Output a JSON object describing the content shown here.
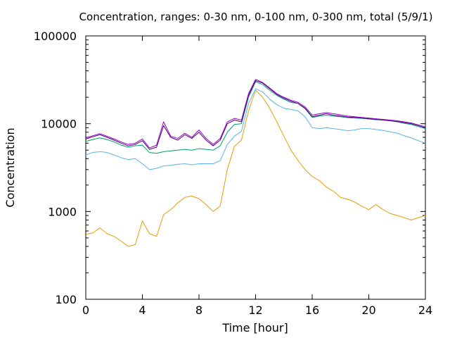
{
  "chart_data": {
    "type": "line",
    "title": "Concentration, ranges: 0-30 nm, 0-100 nm, 0-300 nm, total (5/9/1)",
    "xlabel": "Time [hour]",
    "ylabel": "Concentration",
    "xlim": [
      0,
      24
    ],
    "ylim": [
      100,
      100000
    ],
    "yscale": "log",
    "grid": false,
    "legend": "none",
    "x_ticks": [
      0,
      4,
      8,
      12,
      16,
      20,
      24
    ],
    "x_tick_labels": [
      "0",
      "4",
      "8",
      "12",
      "16",
      "20",
      "24"
    ],
    "y_ticks": [
      100,
      1000,
      10000,
      100000
    ],
    "y_tick_labels": [
      "100",
      "1000",
      "10000",
      "100000"
    ],
    "x": [
      0,
      0.5,
      1,
      1.5,
      2,
      2.5,
      3,
      3.5,
      4,
      4.5,
      5,
      5.5,
      6,
      6.5,
      7,
      7.5,
      8,
      8.5,
      9,
      9.5,
      10,
      10.5,
      11,
      11.5,
      12,
      12.5,
      13,
      13.5,
      14,
      14.5,
      15,
      15.5,
      16,
      16.5,
      17,
      17.5,
      18,
      18.5,
      19,
      19.5,
      20,
      20.5,
      21,
      21.5,
      22,
      22.5,
      23,
      23.5,
      24
    ],
    "series": [
      {
        "color": "#e69f00",
        "values": [
          550,
          570,
          650,
          560,
          520,
          460,
          400,
          420,
          780,
          560,
          520,
          920,
          1050,
          1250,
          1450,
          1500,
          1400,
          1200,
          1000,
          1150,
          3000,
          5500,
          6500,
          14000,
          24000,
          20000,
          15000,
          10500,
          7200,
          5000,
          3800,
          3000,
          2500,
          2250,
          1900,
          1700,
          1450,
          1380,
          1280,
          1150,
          1050,
          1200,
          1050,
          950,
          900,
          850,
          800,
          850,
          900
        ]
      },
      {
        "color": "#56b4e9",
        "values": [
          4400,
          4700,
          4800,
          4700,
          4400,
          4100,
          3900,
          4000,
          3500,
          3000,
          3100,
          3300,
          3350,
          3450,
          3500,
          3400,
          3500,
          3500,
          3500,
          3800,
          5800,
          7200,
          8200,
          17000,
          25000,
          23000,
          19000,
          16500,
          15000,
          14500,
          14000,
          12000,
          9000,
          8800,
          9000,
          8800,
          8600,
          8300,
          8500,
          8800,
          8800,
          8600,
          8400,
          8100,
          7800,
          7300,
          6900,
          6400,
          6000
        ]
      },
      {
        "color": "#009e73",
        "values": [
          6300,
          6600,
          6900,
          6600,
          6200,
          5700,
          5400,
          5600,
          5700,
          4700,
          4600,
          4800,
          4900,
          5000,
          5100,
          5000,
          5200,
          5100,
          5000,
          5600,
          8000,
          9800,
          10000,
          20000,
          30000,
          28000,
          24000,
          21000,
          19000,
          17500,
          17000,
          14800,
          11800,
          12200,
          12500,
          12200,
          12000,
          11700,
          11600,
          11500,
          11300,
          11100,
          11000,
          10800,
          10500,
          10100,
          9800,
          9300,
          8800
        ]
      },
      {
        "color": "#56006e",
        "values": [
          6700,
          7100,
          7500,
          7000,
          6500,
          6000,
          5600,
          5800,
          6400,
          5100,
          5400,
          9500,
          7000,
          6500,
          7500,
          6800,
          8000,
          6500,
          5600,
          6500,
          10000,
          11000,
          10500,
          21000,
          31000,
          29000,
          25000,
          21500,
          19500,
          18000,
          17000,
          15000,
          12000,
          12500,
          13000,
          12500,
          12200,
          11900,
          11800,
          11600,
          11400,
          11200,
          11000,
          10800,
          10600,
          10300,
          10000,
          9500,
          9000
        ]
      },
      {
        "color": "#9400d3",
        "values": [
          6900,
          7300,
          7700,
          7200,
          6700,
          6200,
          5800,
          6000,
          6700,
          5300,
          5700,
          10500,
          7200,
          6800,
          7800,
          7000,
          8500,
          6800,
          5800,
          6800,
          10500,
          11500,
          11000,
          22000,
          32000,
          29500,
          25500,
          22000,
          20000,
          18500,
          17500,
          15500,
          12500,
          13000,
          13400,
          13000,
          12600,
          12200,
          12000,
          11800,
          11600,
          11400,
          11200,
          11000,
          10800,
          10500,
          10200,
          9700,
          9200
        ]
      }
    ]
  }
}
